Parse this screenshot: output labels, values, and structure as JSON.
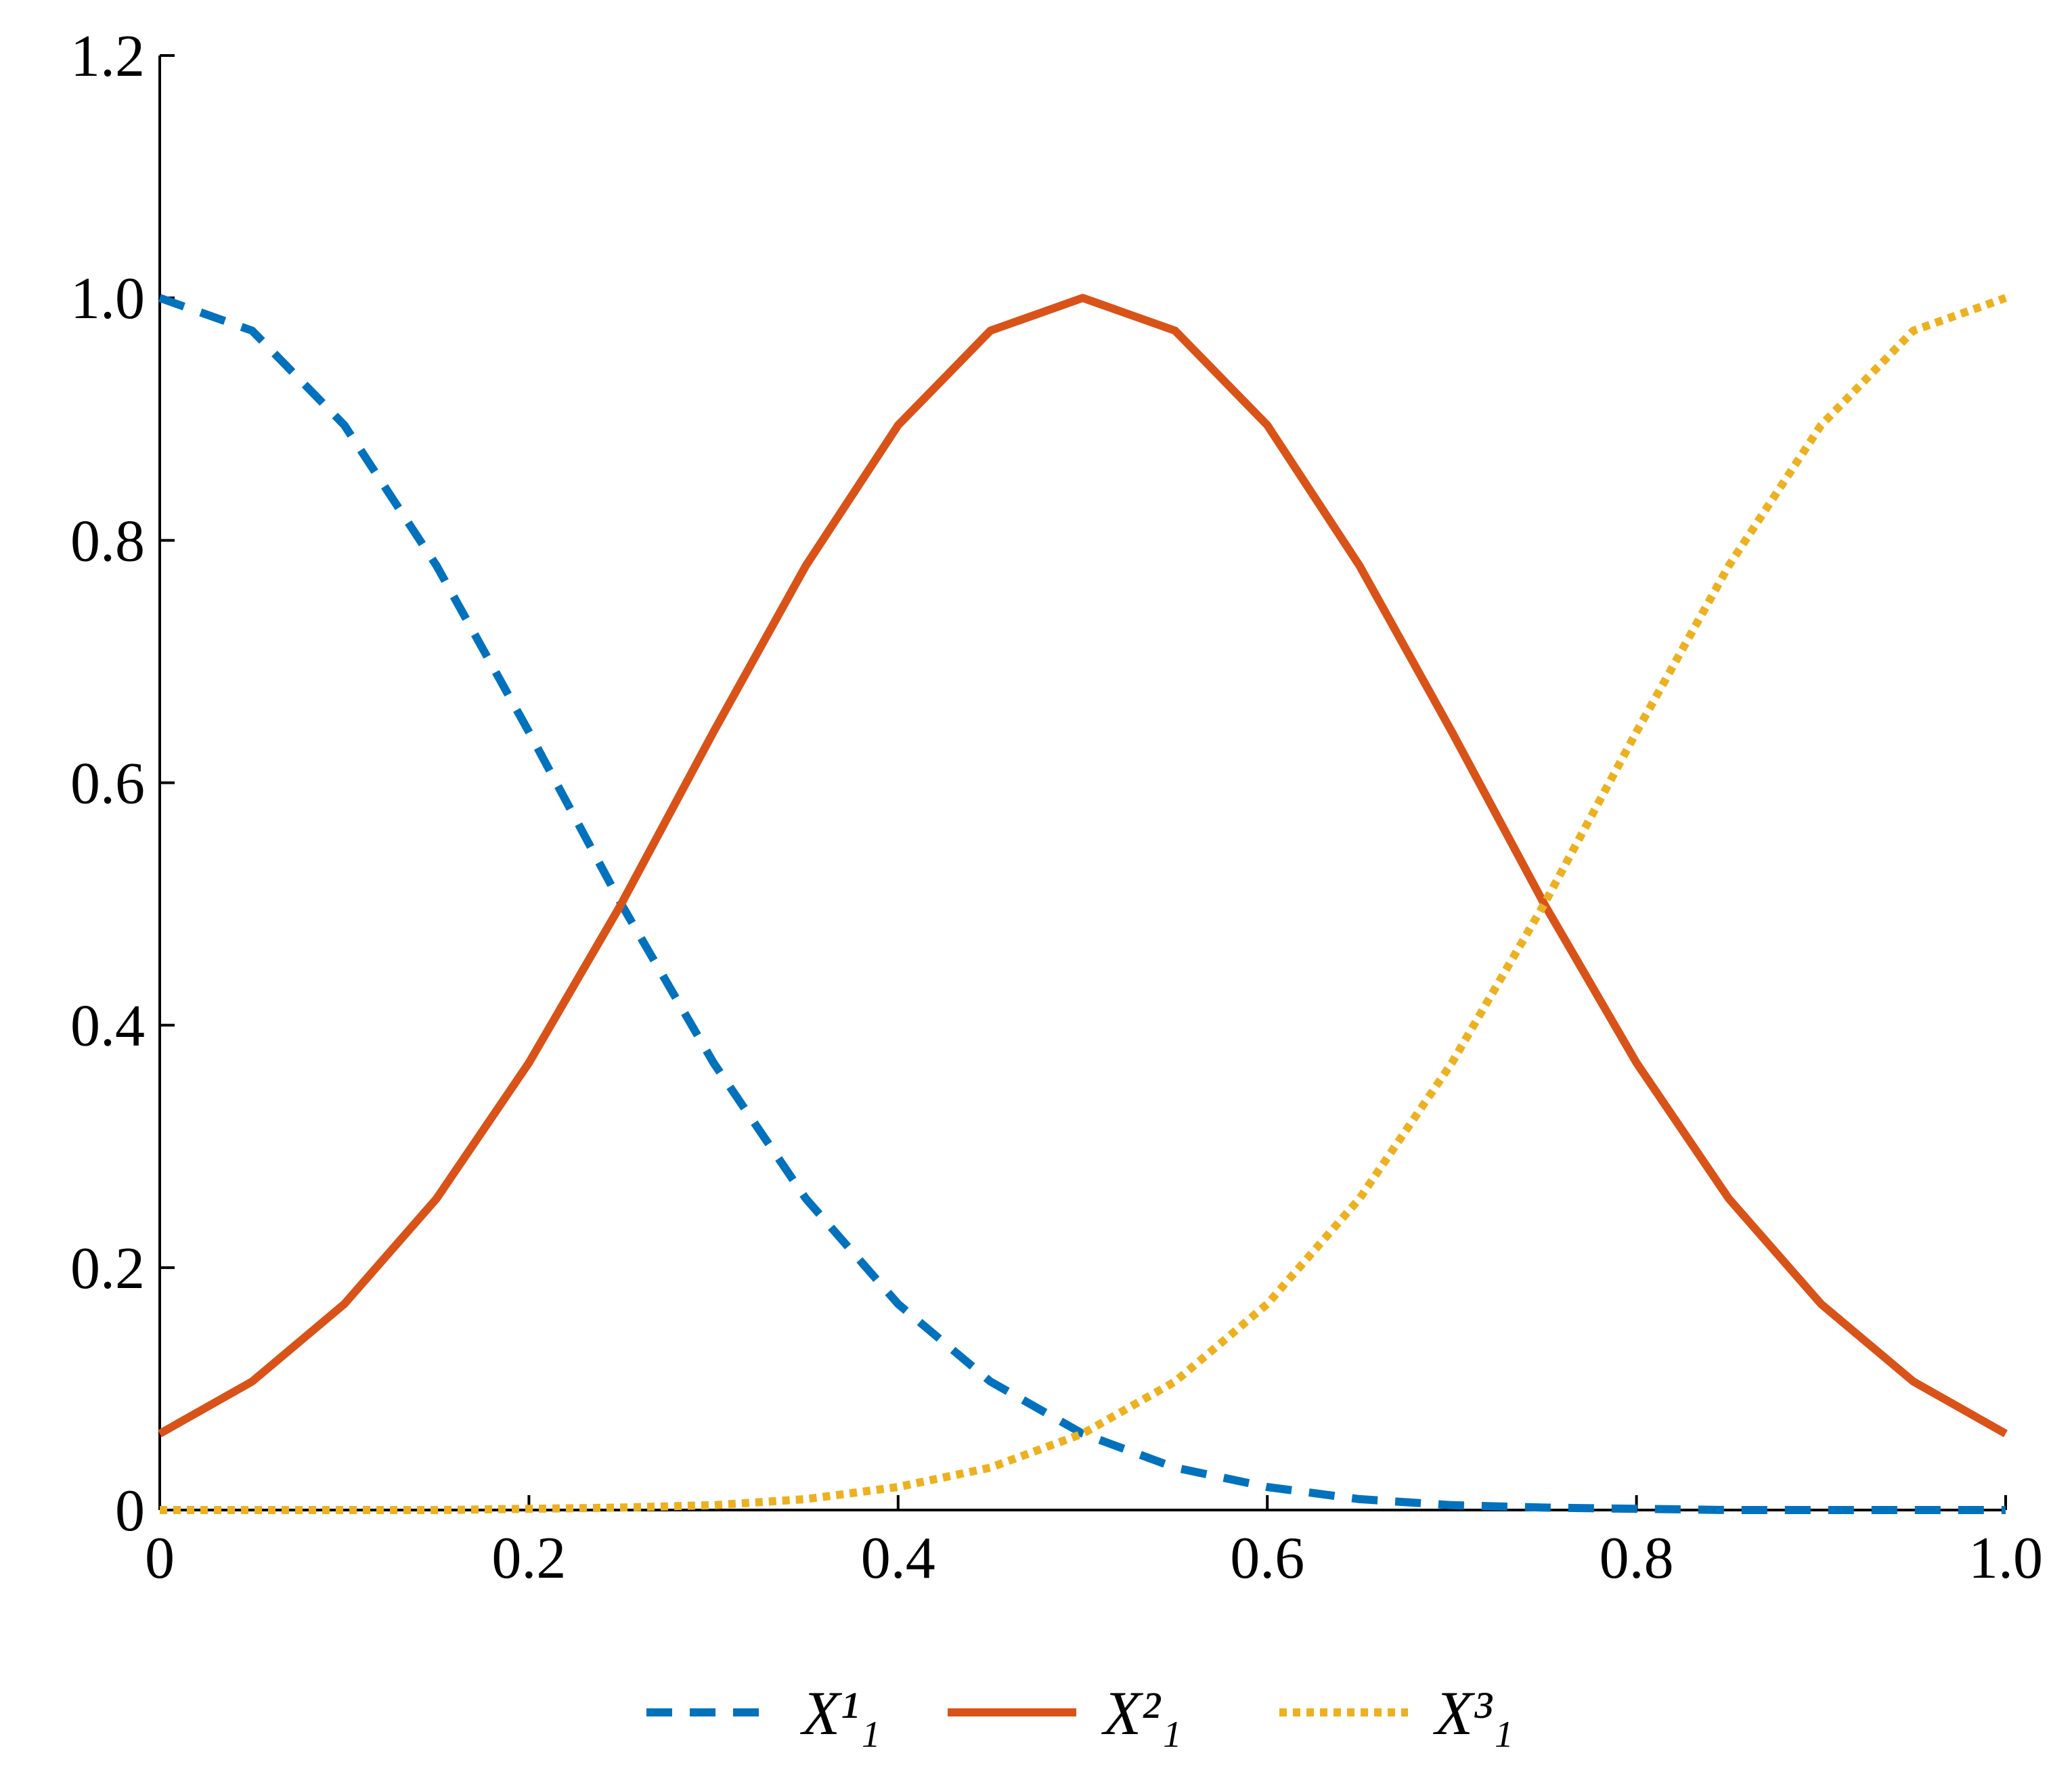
{
  "chart_data": {
    "type": "line",
    "x": [
      0,
      0.05,
      0.1,
      0.15,
      0.2,
      0.25,
      0.3,
      0.35,
      0.4,
      0.45,
      0.5,
      0.55,
      0.6,
      0.65,
      0.7,
      0.75,
      0.8,
      0.85,
      0.9,
      0.95,
      1
    ],
    "series": [
      {
        "name": "X¹₁",
        "color": "#0072bd",
        "dash": "dashed",
        "values": [
          1,
          0.973,
          0.895,
          0.779,
          0.642,
          0.5,
          0.369,
          0.257,
          0.17,
          0.106,
          0.063,
          0.035,
          0.019,
          0.009,
          0.004,
          0.002,
          0.001,
          0,
          0,
          0,
          0
        ]
      },
      {
        "name": "X²₁",
        "color": "#d95319",
        "dash": "solid",
        "values": [
          0.063,
          0.106,
          0.17,
          0.257,
          0.369,
          0.5,
          0.642,
          0.779,
          0.895,
          0.973,
          1,
          0.973,
          0.895,
          0.779,
          0.642,
          0.5,
          0.369,
          0.257,
          0.17,
          0.106,
          0.063
        ]
      },
      {
        "name": "X³₁",
        "color": "#edb120",
        "dash": "dotted",
        "values": [
          0,
          0,
          0,
          0,
          0.001,
          0.002,
          0.004,
          0.009,
          0.019,
          0.035,
          0.063,
          0.106,
          0.17,
          0.257,
          0.369,
          0.5,
          0.642,
          0.779,
          0.895,
          0.973,
          1
        ]
      }
    ],
    "xlim": [
      0,
      1
    ],
    "ylim": [
      0,
      1.2
    ],
    "xticks": [
      0,
      {
        "value": 0.2,
        "label": "0.2"
      },
      {
        "value": 0.4,
        "label": "0.4"
      },
      {
        "value": 0.6,
        "label": "0.6"
      },
      {
        "value": 0.8,
        "label": "0.8"
      },
      {
        "value": 1,
        "label": "1.0"
      }
    ],
    "yticks": [
      0,
      {
        "value": 0.2,
        "label": "0.2"
      },
      {
        "value": 0.4,
        "label": "0.4"
      },
      {
        "value": 0.6,
        "label": "0.6"
      },
      {
        "value": 0.8,
        "label": "0.8"
      },
      {
        "value": 1,
        "label": "1.0"
      },
      {
        "value": 1.2,
        "label": "1.2"
      }
    ],
    "legend": "bottom",
    "grid": false
  }
}
